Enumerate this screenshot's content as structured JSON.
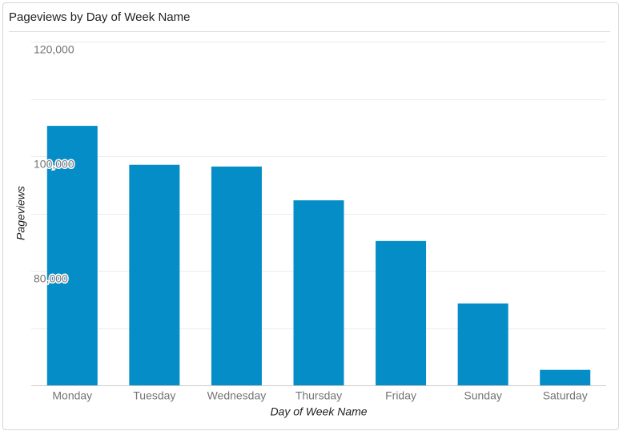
{
  "chart_data": {
    "type": "bar",
    "title": "Pageviews by Day of Week Name",
    "x_label": "Day of Week Name",
    "y_label": "Pageviews",
    "categories": [
      "Monday",
      "Tuesday",
      "Wednesday",
      "Thursday",
      "Friday",
      "Sunday",
      "Saturday"
    ],
    "values": [
      105300,
      98500,
      98200,
      92300,
      85200,
      74300,
      62700
    ],
    "color": "#058dc7",
    "ylim": [
      60000,
      120000
    ],
    "yticks": [
      {
        "value": 80000,
        "label": "80,000"
      },
      {
        "value": 100000,
        "label": "100,000"
      },
      {
        "value": 120000,
        "label": "120,000"
      }
    ],
    "grid_lines": [
      60000,
      70000,
      80000,
      90000,
      100000,
      110000,
      120000
    ],
    "grid": true
  }
}
